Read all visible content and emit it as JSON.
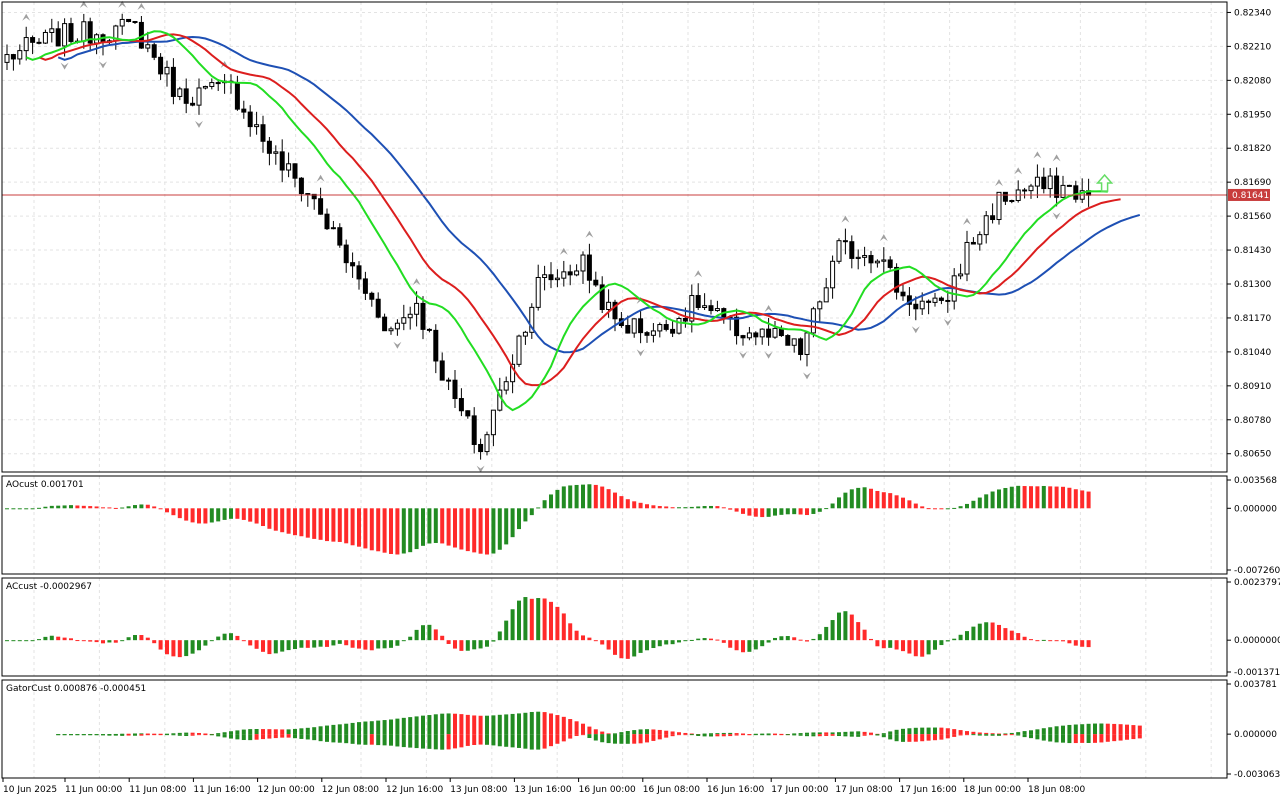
{
  "colors": {
    "background": "#ffffff",
    "grid": "#e3e3e3",
    "frame": "#000000",
    "bull_candle": "#ffffff",
    "bear_candle": "#000000",
    "jaw": "#1e50b4",
    "teeth": "#dc1e1e",
    "lips": "#22dd22",
    "histogram_up": "#228b22",
    "histogram_down": "#ff2a2a",
    "price_line": "#c83c3c",
    "price_label_bg": "#c83c3c",
    "fractal": "#a0a0a0",
    "signal_arrow": "#66dd66"
  },
  "main_panel": {
    "y_axis_ticks": [
      "0.82340",
      "0.82210",
      "0.82080",
      "0.81950",
      "0.81820",
      "0.81690",
      "0.81560",
      "0.81430",
      "0.81300",
      "0.81170",
      "0.81040",
      "0.80910",
      "0.80780",
      "0.80650"
    ],
    "y_axis_range": [
      0.8058,
      0.8238
    ],
    "current_price": "0.81641",
    "indicator_lines": [
      "jaw",
      "teeth",
      "lips"
    ],
    "signal_arrow": "up-arrow-icon"
  },
  "ao_panel": {
    "label": "AOcust 0.001701",
    "y_axis_ticks": [
      "0.003568",
      "0.000000",
      "-0.007260"
    ],
    "y_axis_range": [
      -0.00726,
      0.003568
    ]
  },
  "ac_panel": {
    "label": "ACcust -0.0002967",
    "y_axis_ticks": [
      "0.0023797",
      "0.0000000",
      "-0.0013714"
    ],
    "y_axis_range": [
      -0.0013714,
      0.0023797
    ]
  },
  "gator_panel": {
    "label": "GatorCust 0.000876 -0.000451",
    "y_axis_ticks": [
      "0.003781",
      "0.000000",
      "-0.003063"
    ],
    "y_axis_range": [
      -0.003063,
      0.003781
    ]
  },
  "x_axis_labels": [
    "10 Jun 2025",
    "11 Jun 00:00",
    "11 Jun 08:00",
    "11 Jun 16:00",
    "12 Jun 00:00",
    "12 Jun 08:00",
    "12 Jun 16:00",
    "13 Jun 08:00",
    "13 Jun 16:00",
    "16 Jun 00:00",
    "16 Jun 08:00",
    "16 Jun 16:00",
    "17 Jun 00:00",
    "17 Jun 08:00",
    "17 Jun 16:00",
    "18 Jun 00:00",
    "18 Jun 08:00"
  ],
  "chart_data": {
    "type": "candlestick",
    "timeframe_note": "hourly bars",
    "anchors": [
      {
        "bar": 0,
        "price": 0.8217
      },
      {
        "bar": 8,
        "price": 0.8225
      },
      {
        "bar": 20,
        "price": 0.8228
      },
      {
        "bar": 27,
        "price": 0.8202
      },
      {
        "bar": 35,
        "price": 0.8205
      },
      {
        "bar": 42,
        "price": 0.8178
      },
      {
        "bar": 48,
        "price": 0.8162
      },
      {
        "bar": 54,
        "price": 0.8135
      },
      {
        "bar": 60,
        "price": 0.8112
      },
      {
        "bar": 64,
        "price": 0.8123
      },
      {
        "bar": 69,
        "price": 0.809
      },
      {
        "bar": 74,
        "price": 0.8066
      },
      {
        "bar": 78,
        "price": 0.8095
      },
      {
        "bar": 83,
        "price": 0.813
      },
      {
        "bar": 90,
        "price": 0.8138
      },
      {
        "bar": 95,
        "price": 0.8115
      },
      {
        "bar": 102,
        "price": 0.8112
      },
      {
        "bar": 108,
        "price": 0.8123
      },
      {
        "bar": 113,
        "price": 0.8113
      },
      {
        "bar": 120,
        "price": 0.8109
      },
      {
        "bar": 124,
        "price": 0.8104
      },
      {
        "bar": 130,
        "price": 0.8143
      },
      {
        "bar": 136,
        "price": 0.8142
      },
      {
        "bar": 140,
        "price": 0.8125
      },
      {
        "bar": 146,
        "price": 0.812
      },
      {
        "bar": 150,
        "price": 0.8143
      },
      {
        "bar": 155,
        "price": 0.8162
      },
      {
        "bar": 160,
        "price": 0.8167
      },
      {
        "bar": 165,
        "price": 0.8167
      },
      {
        "bar": 169,
        "price": 0.8164
      }
    ]
  }
}
